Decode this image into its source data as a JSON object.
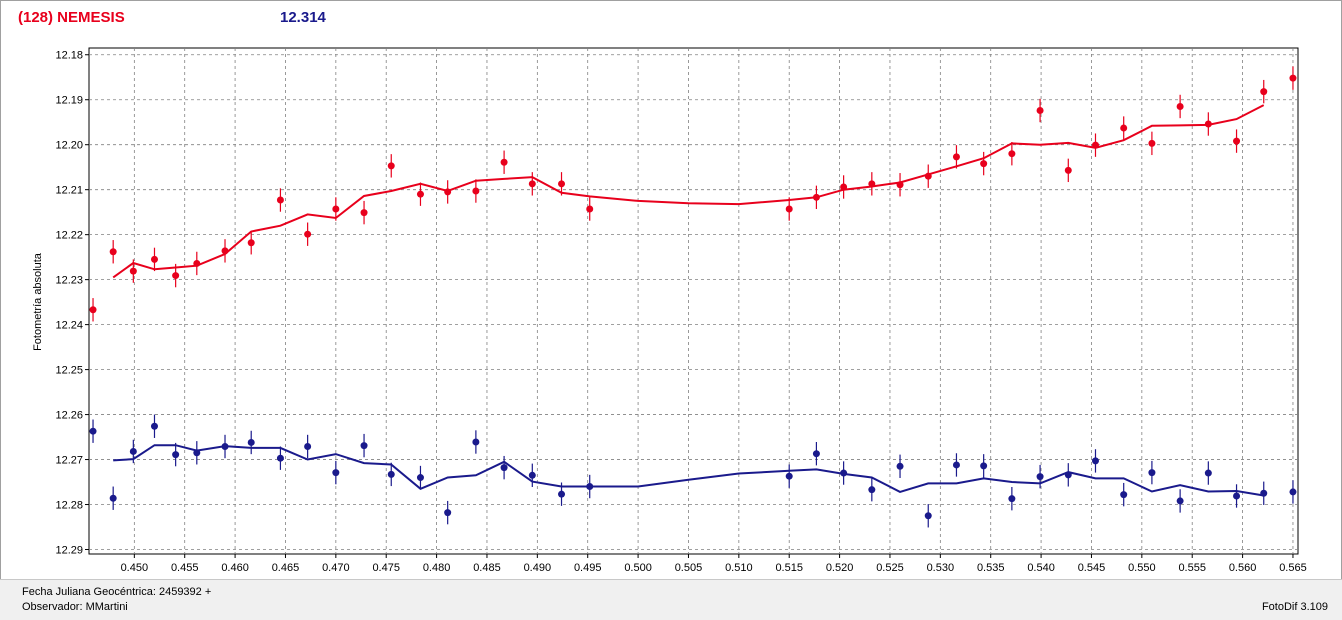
{
  "header": {
    "title": "(128) NEMESIS",
    "value": "12.314"
  },
  "footer": {
    "date_label": "Fecha Juliana Geocéntrica: 2459392 +",
    "observer_label": "Observador: MMartini",
    "software_label": "FotoDif 3.109"
  },
  "colors": {
    "series_red": "#e8001c",
    "series_blue": "#1a1a8c",
    "grid": "#808080"
  },
  "chart_data": {
    "type": "scatter",
    "title": "",
    "xlabel": "",
    "ylabel": "Fotometría absoluta",
    "xlim": [
      0.4455,
      0.5655
    ],
    "ylim": [
      12.291,
      12.1785
    ],
    "y_inverted": true,
    "grid": true,
    "x_ticks": [
      "0.450",
      "0.455",
      "0.460",
      "0.465",
      "0.470",
      "0.475",
      "0.480",
      "0.485",
      "0.490",
      "0.495",
      "0.500",
      "0.505",
      "0.510",
      "0.515",
      "0.520",
      "0.525",
      "0.530",
      "0.535",
      "0.540",
      "0.545",
      "0.550",
      "0.555",
      "0.560",
      "0.565"
    ],
    "y_ticks": [
      "12.18",
      "12.19",
      "12.20",
      "12.21",
      "12.22",
      "12.23",
      "12.24",
      "12.25",
      "12.26",
      "12.27",
      "12.28",
      "12.29"
    ],
    "error_bar": 0.0026,
    "series": [
      {
        "color": "#e8001c",
        "points": [
          [
            0.4459,
            12.2367
          ],
          [
            0.4479,
            12.2238
          ],
          [
            0.4499,
            12.2281
          ],
          [
            0.452,
            12.2255
          ],
          [
            0.4541,
            12.2291
          ],
          [
            0.4562,
            12.2264
          ],
          [
            0.459,
            12.2236
          ],
          [
            0.4616,
            12.2218
          ],
          [
            0.4645,
            12.2123
          ],
          [
            0.4672,
            12.2199
          ],
          [
            0.47,
            12.2143
          ],
          [
            0.4728,
            12.2151
          ],
          [
            0.4755,
            12.2047
          ],
          [
            0.4784,
            12.211
          ],
          [
            0.4811,
            12.2105
          ],
          [
            0.4839,
            12.2103
          ],
          [
            0.4867,
            12.2039
          ],
          [
            0.4895,
            12.2087
          ],
          [
            0.4924,
            12.2087
          ],
          [
            0.4952,
            12.2143
          ],
          [
            0.515,
            12.2143
          ],
          [
            0.5177,
            12.2117
          ],
          [
            0.5204,
            12.2094
          ],
          [
            0.5232,
            12.2087
          ],
          [
            0.526,
            12.2089
          ],
          [
            0.5288,
            12.207
          ],
          [
            0.5316,
            12.2027
          ],
          [
            0.5343,
            12.2042
          ],
          [
            0.5371,
            12.202
          ],
          [
            0.5399,
            12.1924
          ],
          [
            0.5427,
            12.2057
          ],
          [
            0.5454,
            12.2001
          ],
          [
            0.5482,
            12.1963
          ],
          [
            0.551,
            12.1997
          ],
          [
            0.5538,
            12.1915
          ],
          [
            0.5566,
            12.1954
          ],
          [
            0.5594,
            12.1992
          ],
          [
            0.5621,
            12.1882
          ],
          [
            0.565,
            12.1852
          ]
        ],
        "line": [
          [
            0.4479,
            12.2295
          ],
          [
            0.4499,
            12.2263
          ],
          [
            0.452,
            12.2277
          ],
          [
            0.4541,
            12.2273
          ],
          [
            0.4562,
            12.2269
          ],
          [
            0.459,
            12.2243
          ],
          [
            0.4616,
            12.2193
          ],
          [
            0.4645,
            12.218
          ],
          [
            0.4672,
            12.2155
          ],
          [
            0.47,
            12.2163
          ],
          [
            0.4728,
            12.2114
          ],
          [
            0.4755,
            12.2103
          ],
          [
            0.4784,
            12.2087
          ],
          [
            0.4811,
            12.2103
          ],
          [
            0.4839,
            12.208
          ],
          [
            0.4867,
            12.2076
          ],
          [
            0.4895,
            12.2072
          ],
          [
            0.4924,
            12.2107
          ],
          [
            0.4952,
            12.2115
          ],
          [
            0.5,
            12.2125
          ],
          [
            0.505,
            12.213
          ],
          [
            0.51,
            12.2132
          ],
          [
            0.515,
            12.2123
          ],
          [
            0.5177,
            12.2117
          ],
          [
            0.5204,
            12.21
          ],
          [
            0.5232,
            12.2093
          ],
          [
            0.526,
            12.2084
          ],
          [
            0.5288,
            12.2066
          ],
          [
            0.5316,
            12.2048
          ],
          [
            0.5343,
            12.203
          ],
          [
            0.5371,
            12.1997
          ],
          [
            0.5399,
            12.2
          ],
          [
            0.5427,
            12.1996
          ],
          [
            0.5454,
            12.2007
          ],
          [
            0.5482,
            12.199
          ],
          [
            0.551,
            12.1958
          ],
          [
            0.5538,
            12.1957
          ],
          [
            0.5566,
            12.1956
          ],
          [
            0.5594,
            12.1943
          ],
          [
            0.5621,
            12.1912
          ]
        ]
      },
      {
        "color": "#1a1a8c",
        "points": [
          [
            0.4459,
            12.2637
          ],
          [
            0.4479,
            12.2786
          ],
          [
            0.4499,
            12.2682
          ],
          [
            0.452,
            12.2626
          ],
          [
            0.4541,
            12.2689
          ],
          [
            0.4562,
            12.2685
          ],
          [
            0.459,
            12.2671
          ],
          [
            0.4616,
            12.2662
          ],
          [
            0.4645,
            12.2697
          ],
          [
            0.4672,
            12.2671
          ],
          [
            0.47,
            12.2729
          ],
          [
            0.4728,
            12.2669
          ],
          [
            0.4755,
            12.2733
          ],
          [
            0.4784,
            12.274
          ],
          [
            0.4811,
            12.2818
          ],
          [
            0.4839,
            12.2661
          ],
          [
            0.4867,
            12.2718
          ],
          [
            0.4895,
            12.2735
          ],
          [
            0.4924,
            12.2777
          ],
          [
            0.4952,
            12.276
          ],
          [
            0.515,
            12.2737
          ],
          [
            0.5177,
            12.2687
          ],
          [
            0.5204,
            12.273
          ],
          [
            0.5232,
            12.2767
          ],
          [
            0.526,
            12.2715
          ],
          [
            0.5288,
            12.2825
          ],
          [
            0.5316,
            12.2712
          ],
          [
            0.5343,
            12.2714
          ],
          [
            0.5371,
            12.2787
          ],
          [
            0.5399,
            12.2738
          ],
          [
            0.5427,
            12.2734
          ],
          [
            0.5454,
            12.2703
          ],
          [
            0.5482,
            12.2778
          ],
          [
            0.551,
            12.2729
          ],
          [
            0.5538,
            12.2792
          ],
          [
            0.5566,
            12.273
          ],
          [
            0.5594,
            12.2781
          ],
          [
            0.5621,
            12.2775
          ],
          [
            0.565,
            12.2772
          ]
        ],
        "line": [
          [
            0.4479,
            12.2702
          ],
          [
            0.4499,
            12.2699
          ],
          [
            0.452,
            12.2668
          ],
          [
            0.4541,
            12.2668
          ],
          [
            0.4562,
            12.268
          ],
          [
            0.459,
            12.267
          ],
          [
            0.4616,
            12.2674
          ],
          [
            0.4645,
            12.2674
          ],
          [
            0.4672,
            12.27
          ],
          [
            0.47,
            12.2688
          ],
          [
            0.4728,
            12.2708
          ],
          [
            0.4755,
            12.2711
          ],
          [
            0.4784,
            12.2765
          ],
          [
            0.4811,
            12.274
          ],
          [
            0.4839,
            12.2735
          ],
          [
            0.4867,
            12.2705
          ],
          [
            0.4895,
            12.2749
          ],
          [
            0.4924,
            12.276
          ],
          [
            0.4952,
            12.276
          ],
          [
            0.5,
            12.276
          ],
          [
            0.505,
            12.2745
          ],
          [
            0.51,
            12.2731
          ],
          [
            0.515,
            12.2725
          ],
          [
            0.5177,
            12.2722
          ],
          [
            0.5204,
            12.2732
          ],
          [
            0.5232,
            12.274
          ],
          [
            0.526,
            12.2772
          ],
          [
            0.5288,
            12.2753
          ],
          [
            0.5316,
            12.2753
          ],
          [
            0.5343,
            12.2742
          ],
          [
            0.5371,
            12.275
          ],
          [
            0.5399,
            12.2753
          ],
          [
            0.5427,
            12.2728
          ],
          [
            0.5454,
            12.2742
          ],
          [
            0.5482,
            12.2742
          ],
          [
            0.551,
            12.2771
          ],
          [
            0.5538,
            12.2757
          ],
          [
            0.5566,
            12.2771
          ],
          [
            0.5594,
            12.277
          ],
          [
            0.5621,
            12.278
          ]
        ]
      }
    ]
  }
}
